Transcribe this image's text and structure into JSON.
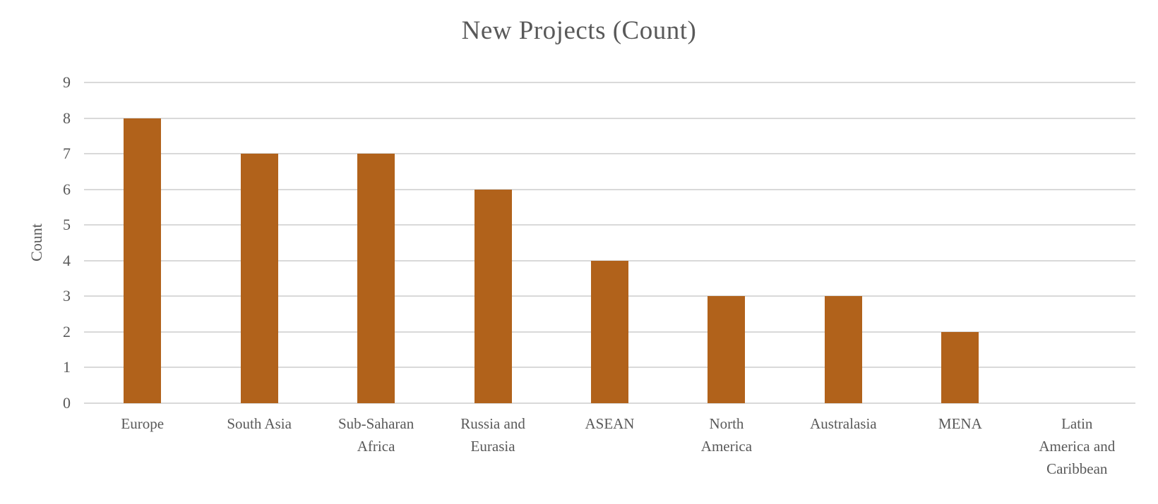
{
  "chart_data": {
    "type": "bar",
    "title": "New Projects (Count)",
    "ylabel": "Count",
    "xlabel": "",
    "categories": [
      "Europe",
      "South Asia",
      "Sub-Saharan Africa",
      "Russia and Eurasia",
      "ASEAN",
      "North America",
      "Australasia",
      "MENA",
      "Latin America and Caribbean"
    ],
    "category_label_lines": [
      [
        "Europe"
      ],
      [
        "South Asia"
      ],
      [
        "Sub-Saharan",
        "Africa"
      ],
      [
        "Russia and",
        "Eurasia"
      ],
      [
        "ASEAN"
      ],
      [
        "North",
        "America"
      ],
      [
        "Australasia"
      ],
      [
        "MENA"
      ],
      [
        "Latin",
        "America and",
        "Caribbean"
      ]
    ],
    "values": [
      8,
      7,
      7,
      6,
      4,
      3,
      3,
      2,
      0
    ],
    "ylim": [
      0,
      9
    ],
    "ytick_step": 1,
    "yticks": [
      0,
      1,
      2,
      3,
      4,
      5,
      6,
      7,
      8,
      9
    ],
    "grid": "horizontal",
    "legend": "none",
    "colors": {
      "bar": "#B1621B",
      "text": "#595959",
      "gridline": "#D9D9D9",
      "axis_line": "#D9D9D9",
      "background": "#FFFFFF"
    }
  }
}
